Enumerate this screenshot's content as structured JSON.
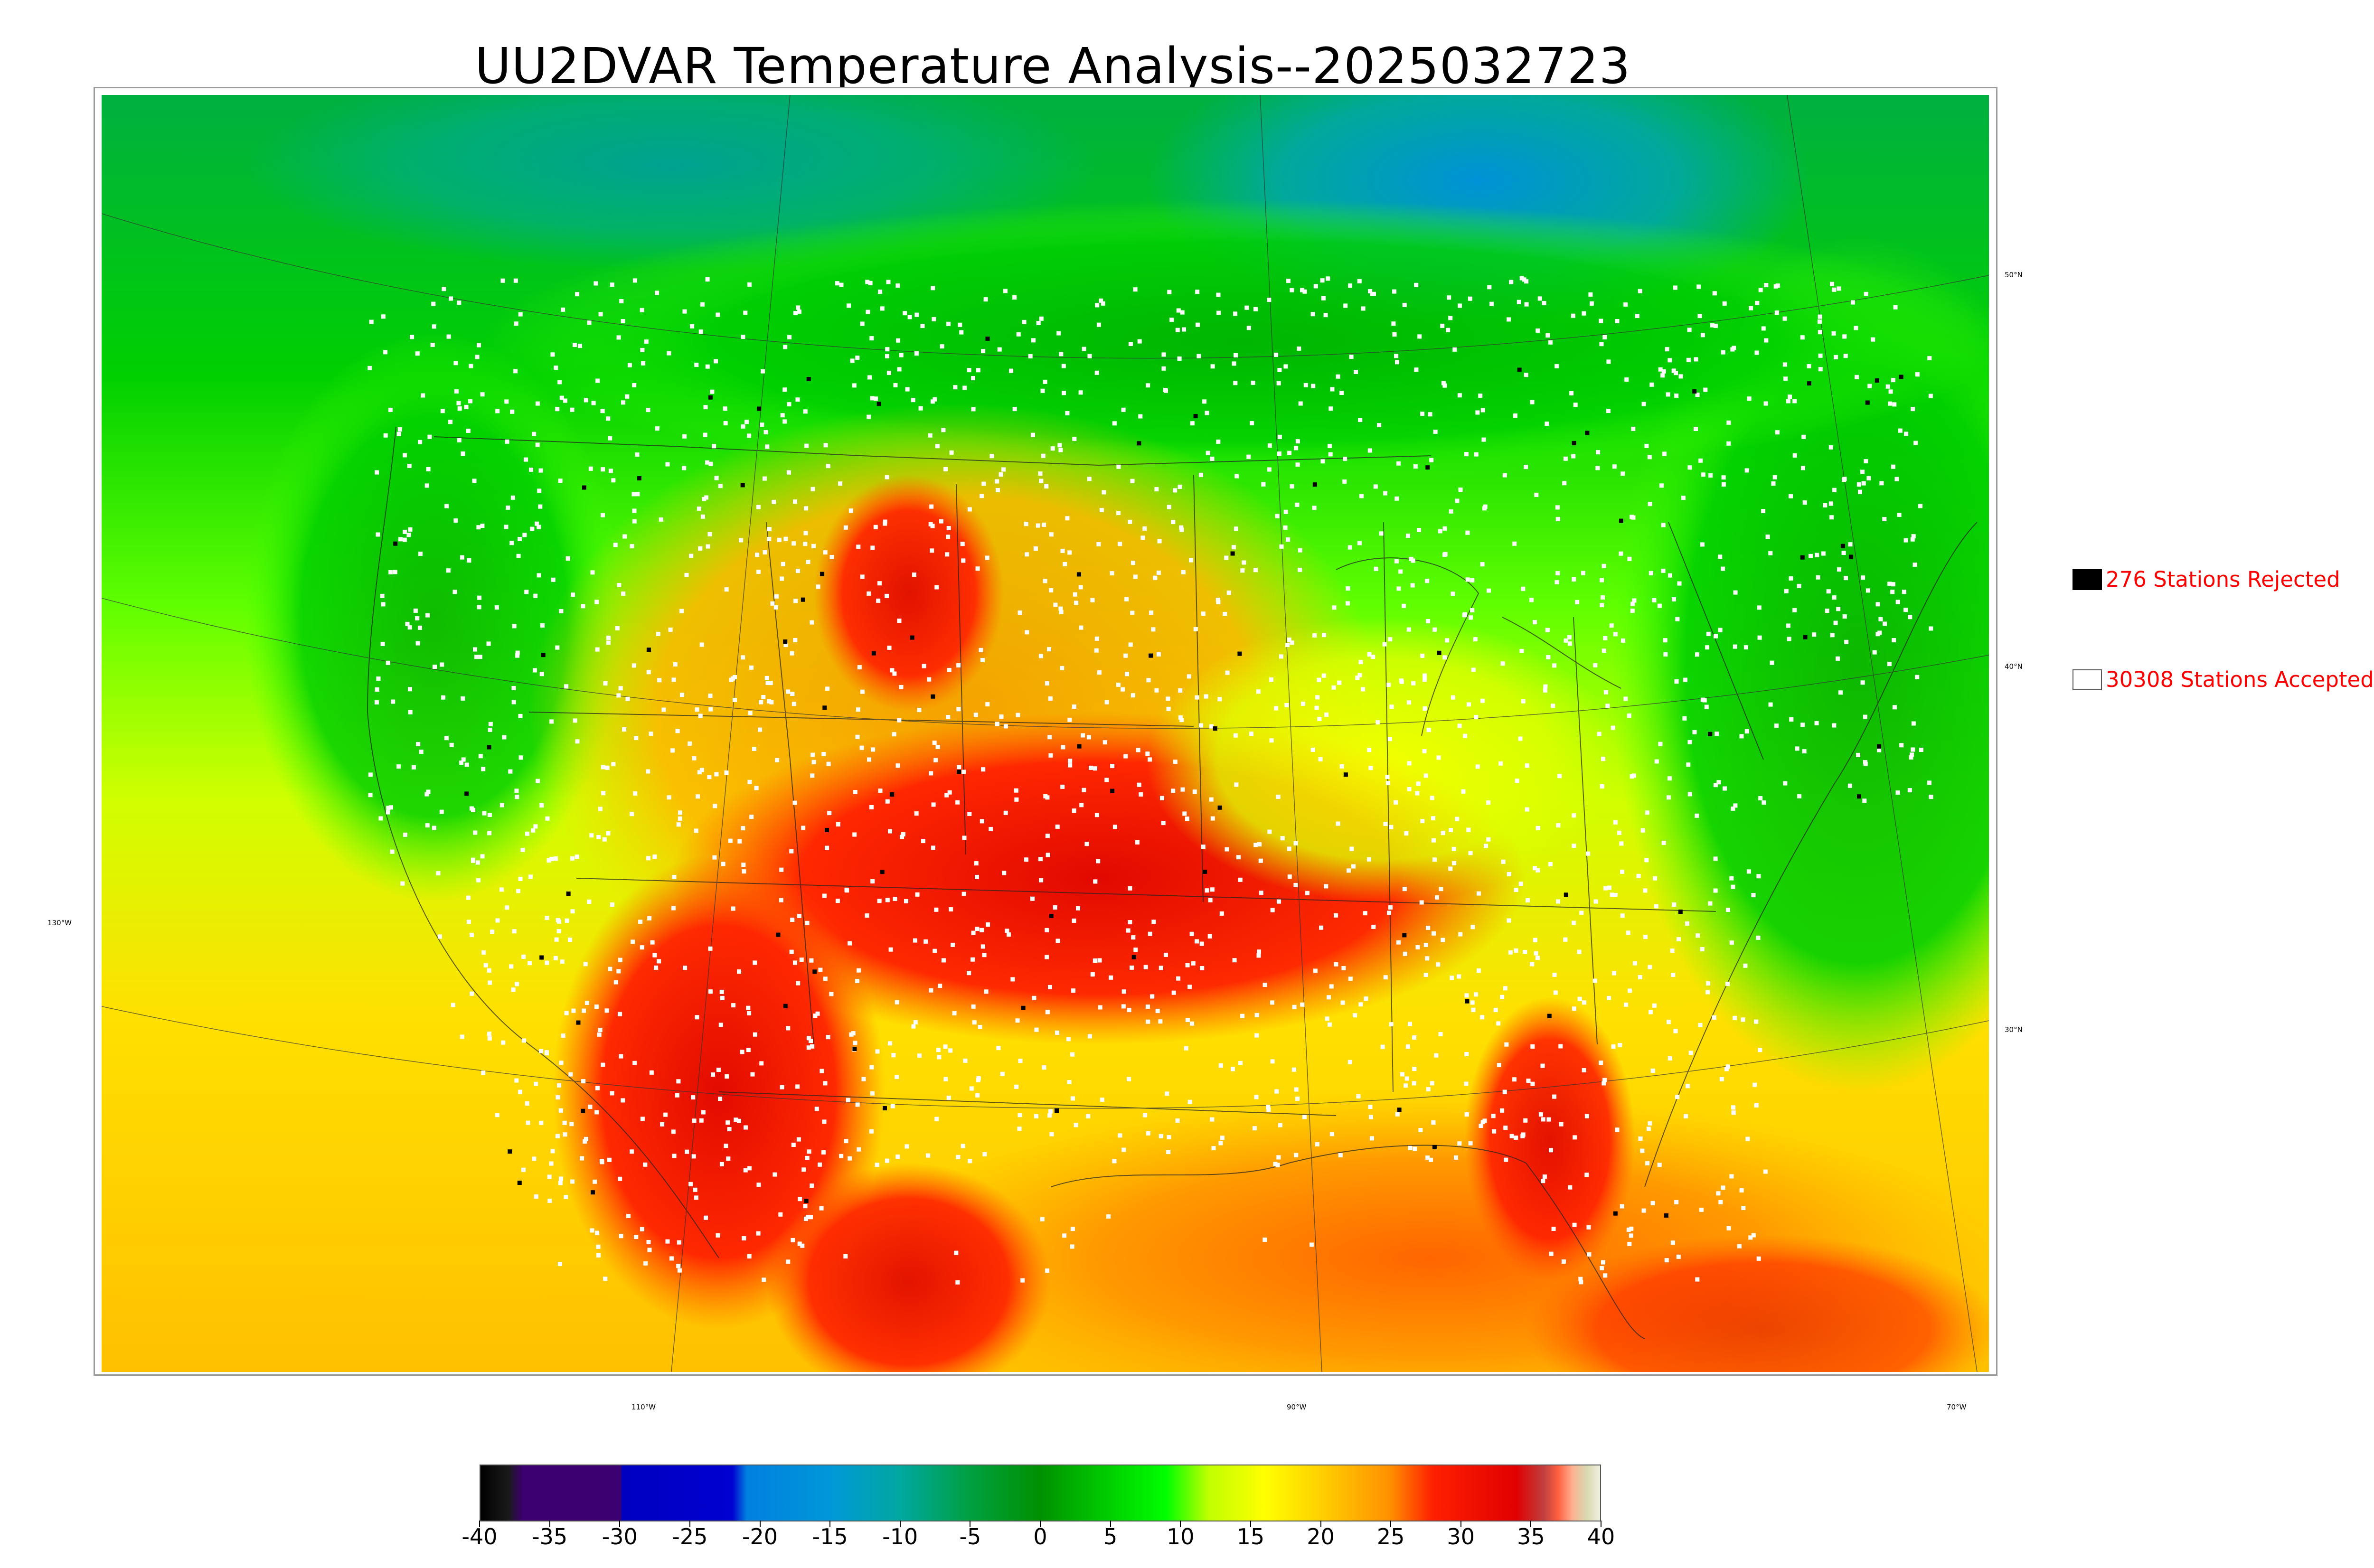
{
  "title": "UU2DVAR Temperature Analysis--2025032723",
  "map": {
    "latitude_labels": [
      "50°N",
      "40°N",
      "30°N"
    ],
    "longitude_labels": [
      "130°W",
      "110°W",
      "90°W",
      "70°W"
    ]
  },
  "legend": {
    "rejected": {
      "label": "276 Stations Rejected",
      "color": "#000000"
    },
    "accepted": {
      "label": "30308 Stations Accepted",
      "color": "#ffffff"
    },
    "text_color": "#ff0000"
  },
  "colorbar": {
    "min": -40,
    "max": 40,
    "ticks": [
      "-40",
      "-35",
      "-30",
      "-25",
      "-20",
      "-15",
      "-10",
      "-5",
      "0",
      "5",
      "10",
      "15",
      "20",
      "25",
      "30",
      "35",
      "40"
    ],
    "colors": [
      {
        "value": -40,
        "color": "#000000"
      },
      {
        "value": -38,
        "color": "#1a1a1a"
      },
      {
        "value": -37,
        "color": "#3d0070"
      },
      {
        "value": -30,
        "color": "#3d0070"
      },
      {
        "value": -29.9,
        "color": "#0000c0"
      },
      {
        "value": -22,
        "color": "#0000d0"
      },
      {
        "value": -21,
        "color": "#0080e0"
      },
      {
        "value": -15,
        "color": "#0098d8"
      },
      {
        "value": -10,
        "color": "#00a8a0"
      },
      {
        "value": -5,
        "color": "#00a040"
      },
      {
        "value": 0,
        "color": "#009000"
      },
      {
        "value": 5,
        "color": "#00d000"
      },
      {
        "value": 9,
        "color": "#00ff00"
      },
      {
        "value": 12,
        "color": "#c0ff00"
      },
      {
        "value": 16,
        "color": "#ffff00"
      },
      {
        "value": 20,
        "color": "#ffd000"
      },
      {
        "value": 25,
        "color": "#ff9000"
      },
      {
        "value": 28,
        "color": "#ff2000"
      },
      {
        "value": 34,
        "color": "#e00000"
      },
      {
        "value": 36,
        "color": "#c04040"
      },
      {
        "value": 37,
        "color": "#ff6040"
      },
      {
        "value": 38,
        "color": "#ffb090"
      },
      {
        "value": 39,
        "color": "#d8d8b0"
      },
      {
        "value": 40,
        "color": "#f0f0e0"
      }
    ]
  }
}
